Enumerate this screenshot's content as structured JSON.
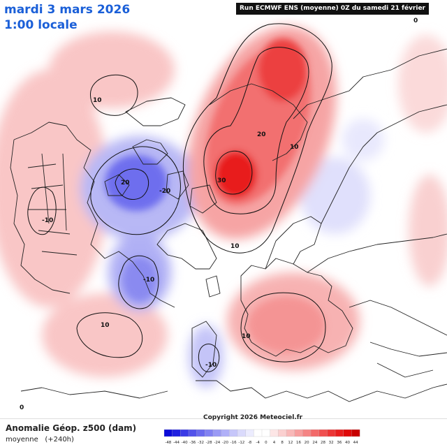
{
  "header": {
    "date": "mardi 3 mars 2026",
    "local_time": "1:00 locale",
    "run_info": "Run ECMWF ENS (moyenne) 0Z du samedi 21 février 2026"
  },
  "footer": {
    "parameter": "Anomalie Géop. z500 (dam)",
    "mean_label": "moyenne",
    "lead_time": "(+240h)",
    "copyright": "Copyright 2026 Meteociel.fr"
  },
  "contour_labels": [
    "10",
    "20",
    "30",
    "20",
    "10",
    "-20",
    "-10",
    "-10",
    "10",
    "10",
    "-10",
    "10",
    "0",
    "0"
  ],
  "color_scale": {
    "ticks": [
      "-48",
      "-44",
      "-40",
      "-36",
      "-32",
      "-28",
      "-24",
      "-20",
      "-16",
      "-12",
      "-8",
      "-4",
      "0",
      "4",
      "8",
      "12",
      "16",
      "20",
      "24",
      "28",
      "32",
      "36",
      "40",
      "44"
    ],
    "colors": [
      "#0b0bd8",
      "#2020e0",
      "#3a3ae6",
      "#5252ea",
      "#6a6aee",
      "#8282f2",
      "#9a9af5",
      "#b0b0f8",
      "#c6c6fa",
      "#dadafc",
      "#ececfe",
      "#ffffff",
      "#ffffff",
      "#fde6e6",
      "#fbd0d0",
      "#f9b8b8",
      "#f79e9e",
      "#f58484",
      "#f36a6a",
      "#f05050",
      "#ec3636",
      "#e81e1e",
      "#e00a0a",
      "#c80000"
    ]
  }
}
